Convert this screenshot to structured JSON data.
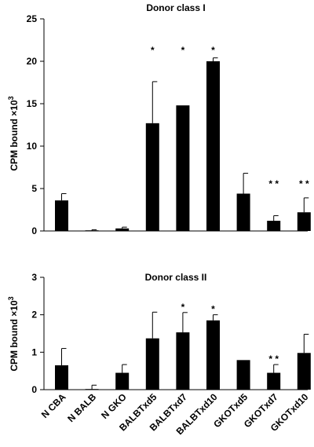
{
  "chart_data": [
    {
      "type": "bar",
      "title": "Donor class I",
      "ylabel_main": "CPM bound",
      "ylabel_suffix": "×10",
      "ylabel_exp": "3",
      "categories": [
        "N CBA",
        "N BALB",
        "N GKO",
        "BALBTxd5",
        "BALBTxd7",
        "BALBTxd10",
        "GKOTxd5",
        "GKOTxd7",
        "GKOTxd10"
      ],
      "values": [
        3.6,
        0.05,
        0.3,
        12.7,
        14.8,
        20.0,
        4.4,
        1.2,
        2.2
      ],
      "errors": [
        0.8,
        0.1,
        0.15,
        4.9,
        0,
        0.4,
        2.4,
        0.6,
        1.7
      ],
      "significance": [
        "",
        "",
        "",
        "*",
        "*",
        "*",
        "",
        "* *",
        "* *"
      ],
      "ylim": [
        0,
        25
      ],
      "yticks": [
        0,
        5,
        10,
        15,
        20,
        25
      ],
      "grid": false
    },
    {
      "type": "bar",
      "title": "Donor class II",
      "ylabel_main": "CPM bound",
      "ylabel_suffix": "×10",
      "ylabel_exp": "3",
      "categories": [
        "N CBA",
        "N BALB",
        "N GKO",
        "BALBTxd5",
        "BALBTxd7",
        "BALBTxd10",
        "GKOTxd5",
        "GKOTxd7",
        "GKOTxd10"
      ],
      "values": [
        0.65,
        0.0,
        0.45,
        1.37,
        1.53,
        1.85,
        0.79,
        0.45,
        0.98
      ],
      "errors": [
        0.45,
        0.12,
        0.22,
        0.7,
        0.53,
        0.15,
        0,
        0.22,
        0.5
      ],
      "significance": [
        "",
        "",
        "",
        "",
        "*",
        "*",
        "",
        "* *",
        ""
      ],
      "ylim": [
        0,
        3
      ],
      "yticks": [
        0,
        1,
        2,
        3
      ],
      "grid": false
    }
  ]
}
